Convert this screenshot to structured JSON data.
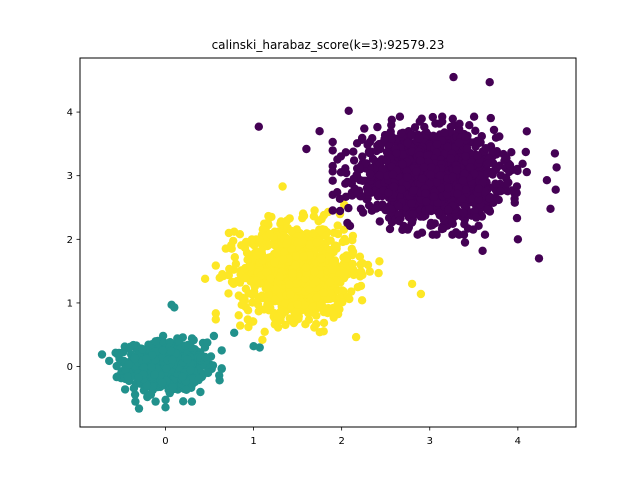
{
  "chart_data": {
    "type": "scatter",
    "title": "calinski_harabaz_score(k=3):92579.23",
    "xlabel": "",
    "ylabel": "",
    "xlim": [
      -0.97,
      4.66
    ],
    "ylim": [
      -0.95,
      4.85
    ],
    "xticks": [
      0,
      1,
      2,
      3,
      4
    ],
    "yticks": [
      0,
      1,
      2,
      3,
      4
    ],
    "grid": false,
    "legend": "none",
    "series": [
      {
        "color": "#21918c",
        "center": [
          0.0,
          0.0
        ],
        "spread": [
          0.22,
          0.19
        ],
        "count": 700,
        "outliers": [
          [
            -0.72,
            0.19
          ],
          [
            0.07,
            0.97
          ],
          [
            0.1,
            0.93
          ],
          [
            0.55,
            0.48
          ],
          [
            1.0,
            0.32
          ],
          [
            1.07,
            0.3
          ],
          [
            0.78,
            0.53
          ],
          [
            -0.3,
            -0.66
          ],
          [
            0.0,
            -0.64
          ],
          [
            0.45,
            0.15
          ]
        ]
      },
      {
        "color": "#fde725",
        "center": [
          1.5,
          1.5
        ],
        "spread": [
          0.32,
          0.36
        ],
        "count": 1000,
        "outliers": [
          [
            1.8,
            1.16
          ],
          [
            2.9,
            1.14
          ],
          [
            0.78,
            2.12
          ],
          [
            0.72,
            2.1
          ],
          [
            1.33,
            2.83
          ],
          [
            2.8,
            1.3
          ],
          [
            0.45,
            1.38
          ],
          [
            1.1,
            0.42
          ]
        ]
      },
      {
        "color": "#440154",
        "center": [
          3.0,
          3.0
        ],
        "spread": [
          0.38,
          0.32
        ],
        "count": 1800,
        "outliers": [
          [
            1.06,
            3.77
          ],
          [
            1.75,
            3.7
          ],
          [
            1.6,
            3.42
          ],
          [
            3.27,
            4.55
          ],
          [
            3.68,
            4.47
          ],
          [
            4.43,
            2.78
          ],
          [
            4.37,
            2.48
          ],
          [
            4.24,
            1.7
          ],
          [
            4.42,
            3.35
          ],
          [
            4.44,
            3.13
          ],
          [
            3.4,
            1.95
          ],
          [
            2.8,
            2.27
          ],
          [
            3.6,
            1.82
          ],
          [
            2.3,
            2.75
          ],
          [
            4.0,
            2.0
          ],
          [
            2.08,
            4.02
          ],
          [
            4.33,
            2.93
          ]
        ]
      }
    ]
  }
}
